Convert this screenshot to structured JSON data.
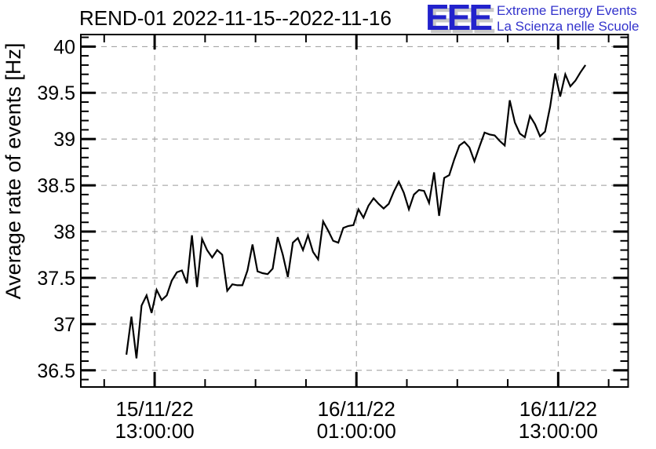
{
  "header": {
    "title": "REND-01 2022-11-15--2022-11-16"
  },
  "logo": {
    "acronym": "EEE",
    "line1": "Extreme Energy Events",
    "line2": "La Scienza nelle Scuole",
    "acronym_color": "#2222cc",
    "text_color": "#3333cc"
  },
  "chart_data": {
    "type": "line",
    "title": "REND-01 2022-11-15--2022-11-16",
    "xlabel": "",
    "ylabel": "Average rate of events [Hz]",
    "series_name": "average rate of events",
    "line_color": "#000000",
    "grid_color": "#999999",
    "grid_style": "dashed",
    "legend": "none",
    "x_unit": "hours since 2022-11-15 00:00",
    "xlim": [
      8.61,
      41.16
    ],
    "ylim": [
      36.32,
      40.13
    ],
    "y_major_ticks": [
      36.5,
      37,
      37.5,
      38,
      38.5,
      39,
      39.5,
      40
    ],
    "y_tick_labels": [
      "36.5",
      "37",
      "37.5",
      "38",
      "38.5",
      "39",
      "39.5",
      "40"
    ],
    "y_minor_step": 0.1,
    "x_major_ticks": [
      {
        "hours": 13,
        "date": "15/11/22",
        "time": "13:00:00"
      },
      {
        "hours": 25,
        "date": "16/11/22",
        "time": "01:00:00"
      },
      {
        "hours": 37,
        "date": "16/11/22",
        "time": "13:00:00"
      }
    ],
    "x_minor_ticks_hours": [
      10,
      16,
      19,
      22,
      28,
      31,
      34,
      40
    ],
    "x_start_hours": 11.32,
    "x_step_hours": 0.3,
    "values": [
      36.67,
      37.08,
      36.63,
      37.2,
      37.31,
      37.12,
      37.37,
      37.26,
      37.31,
      37.47,
      37.56,
      37.58,
      37.44,
      37.96,
      37.4,
      37.92,
      37.8,
      37.72,
      37.8,
      37.75,
      37.36,
      37.43,
      37.42,
      37.42,
      37.58,
      37.86,
      37.57,
      37.55,
      37.54,
      37.6,
      37.94,
      37.75,
      37.51,
      37.88,
      37.93,
      37.8,
      37.96,
      37.78,
      37.7,
      38.11,
      38.01,
      37.9,
      37.88,
      38.04,
      38.06,
      38.07,
      38.24,
      38.15,
      38.28,
      38.36,
      38.3,
      38.25,
      38.3,
      38.43,
      38.54,
      38.42,
      38.24,
      38.4,
      38.45,
      38.44,
      38.31,
      38.64,
      38.17,
      38.58,
      38.61,
      38.78,
      38.93,
      38.97,
      38.91,
      38.76,
      38.92,
      39.07,
      39.05,
      39.04,
      38.98,
      38.93,
      39.42,
      39.18,
      39.06,
      39.02,
      39.25,
      39.16,
      39.03,
      39.08,
      39.35,
      39.71,
      39.46,
      39.7,
      39.57,
      39.63,
      39.72,
      39.8
    ]
  }
}
